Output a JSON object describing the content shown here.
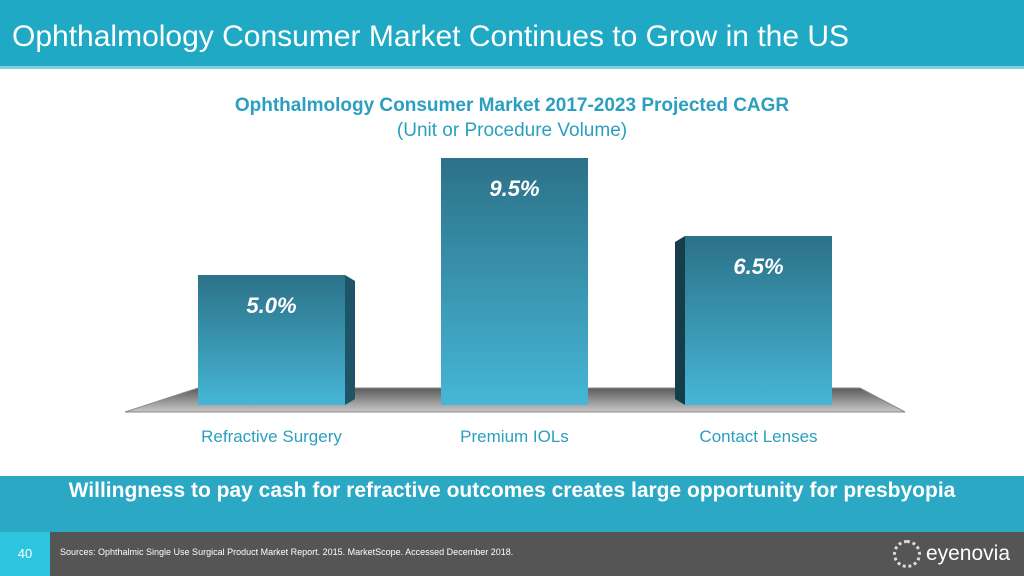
{
  "header": {
    "title": "Ophthalmology Consumer Market Continues to Grow in the US"
  },
  "chart_data": {
    "type": "bar",
    "title": "Ophthalmology Consumer Market 2017-2023 Projected CAGR",
    "subtitle": "(Unit or Procedure Volume)",
    "categories": [
      "Refractive Surgery",
      "Premium IOLs",
      "Contact Lenses"
    ],
    "values": [
      5.0,
      9.5,
      6.5
    ],
    "data_labels": [
      "5.0%",
      "9.5%",
      "6.5%"
    ],
    "xlabel": "",
    "ylabel": "",
    "ylim": [
      0,
      10
    ],
    "grid": false
  },
  "banner": {
    "text": "Willingness to pay cash for refractive outcomes creates large opportunity for presbyopia"
  },
  "footer": {
    "page": "40",
    "sources": "Sources:  Ophthalmic Single Use Surgical Product Market Report. 2015. MarketScope. Accessed December 2018.",
    "logo": "eyenovia"
  },
  "colors": {
    "accent": "#1fa9c4",
    "bar_top": "#2c7188",
    "bar_bottom": "#46b6d6"
  }
}
